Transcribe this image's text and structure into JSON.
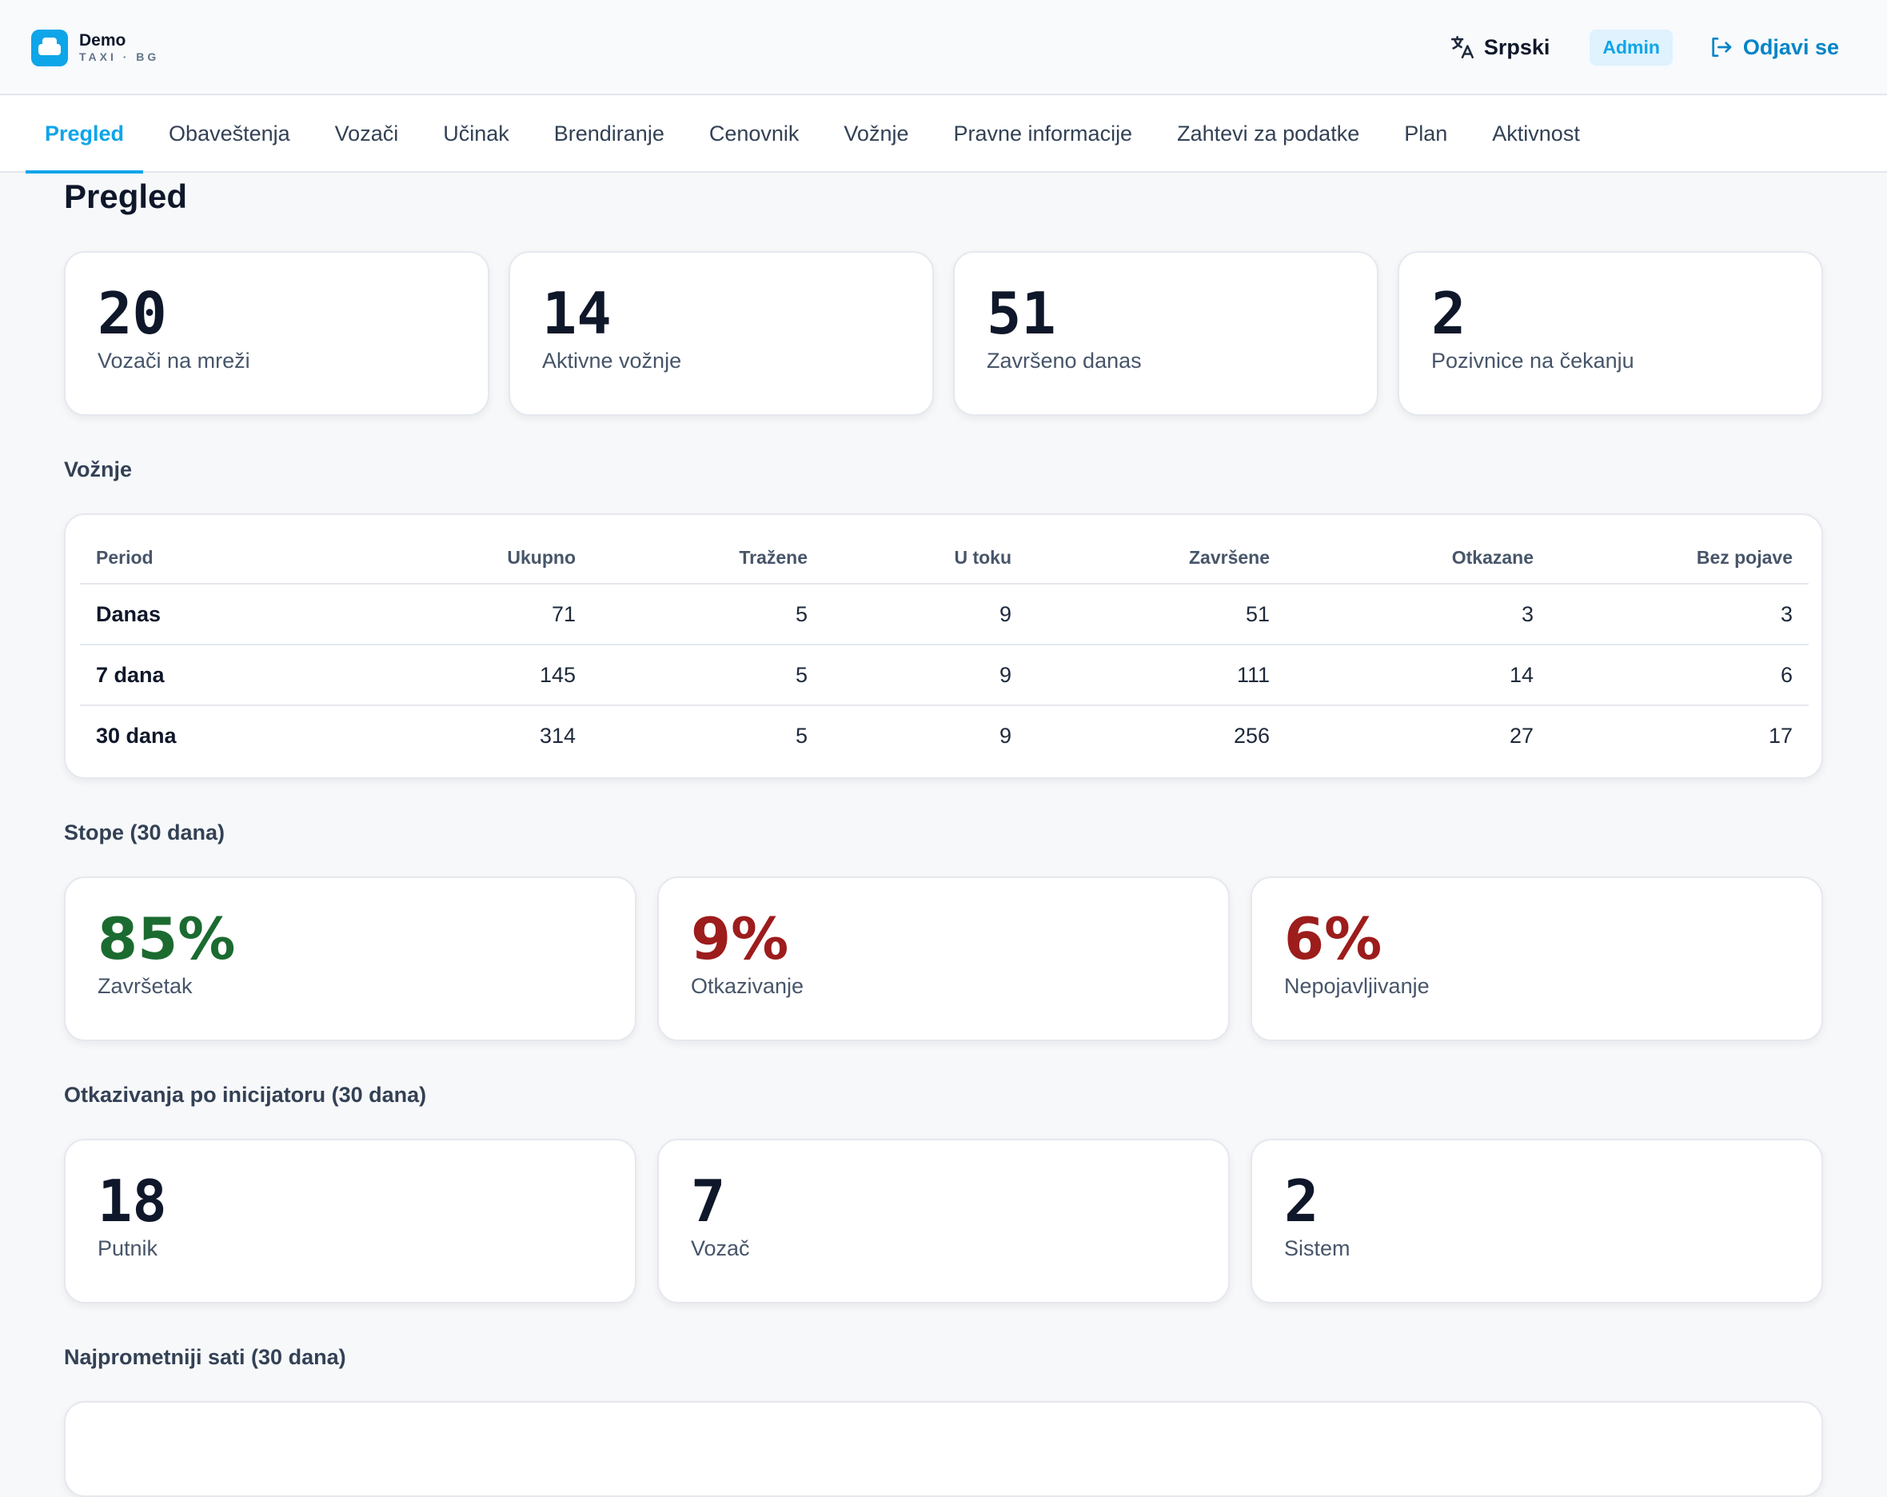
{
  "brand": {
    "name": "Demo",
    "sub": "TAXI · BG"
  },
  "header": {
    "language": "Srpski",
    "role": "Admin",
    "logout": "Odjavi se"
  },
  "nav": {
    "items": [
      "Pregled",
      "Obaveštenja",
      "Vozači",
      "Učinak",
      "Brendiranje",
      "Cenovnik",
      "Vožnje",
      "Pravne informacije",
      "Zahtevi za podatke",
      "Plan",
      "Aktivnost"
    ],
    "active": "Pregled"
  },
  "page": {
    "title": "Pregled"
  },
  "stats": [
    {
      "value": "20",
      "label": "Vozači na mreži"
    },
    {
      "value": "14",
      "label": "Aktivne vožnje"
    },
    {
      "value": "51",
      "label": "Završeno danas"
    },
    {
      "value": "2",
      "label": "Pozivnice na čekanju"
    }
  ],
  "rides": {
    "title": "Vožnje",
    "columns": [
      "Period",
      "Ukupno",
      "Tražene",
      "U toku",
      "Završene",
      "Otkazane",
      "Bez pojave"
    ],
    "rows": [
      [
        "Danas",
        "71",
        "5",
        "9",
        "51",
        "3",
        "3"
      ],
      [
        "7 dana",
        "145",
        "5",
        "9",
        "111",
        "14",
        "6"
      ],
      [
        "30 dana",
        "314",
        "5",
        "9",
        "256",
        "27",
        "17"
      ]
    ]
  },
  "rates": {
    "title": "Stope (30 dana)",
    "items": [
      {
        "value": "85%",
        "label": "Završetak",
        "color": "#1b6b30"
      },
      {
        "value": "9%",
        "label": "Otkazivanje",
        "color": "#9d1c1c"
      },
      {
        "value": "6%",
        "label": "Nepojavljivanje",
        "color": "#9d1c1c"
      }
    ]
  },
  "cancellations": {
    "title": "Otkazivanja po inicijatoru (30 dana)",
    "items": [
      {
        "value": "18",
        "label": "Putnik"
      },
      {
        "value": "7",
        "label": "Vozač"
      },
      {
        "value": "2",
        "label": "Sistem"
      }
    ]
  },
  "busiest": {
    "title": "Najprometniji sati (30 dana)"
  },
  "colors": {
    "accent": "#0ea5e9",
    "success": "#1b6b30",
    "danger": "#9d1c1c"
  }
}
